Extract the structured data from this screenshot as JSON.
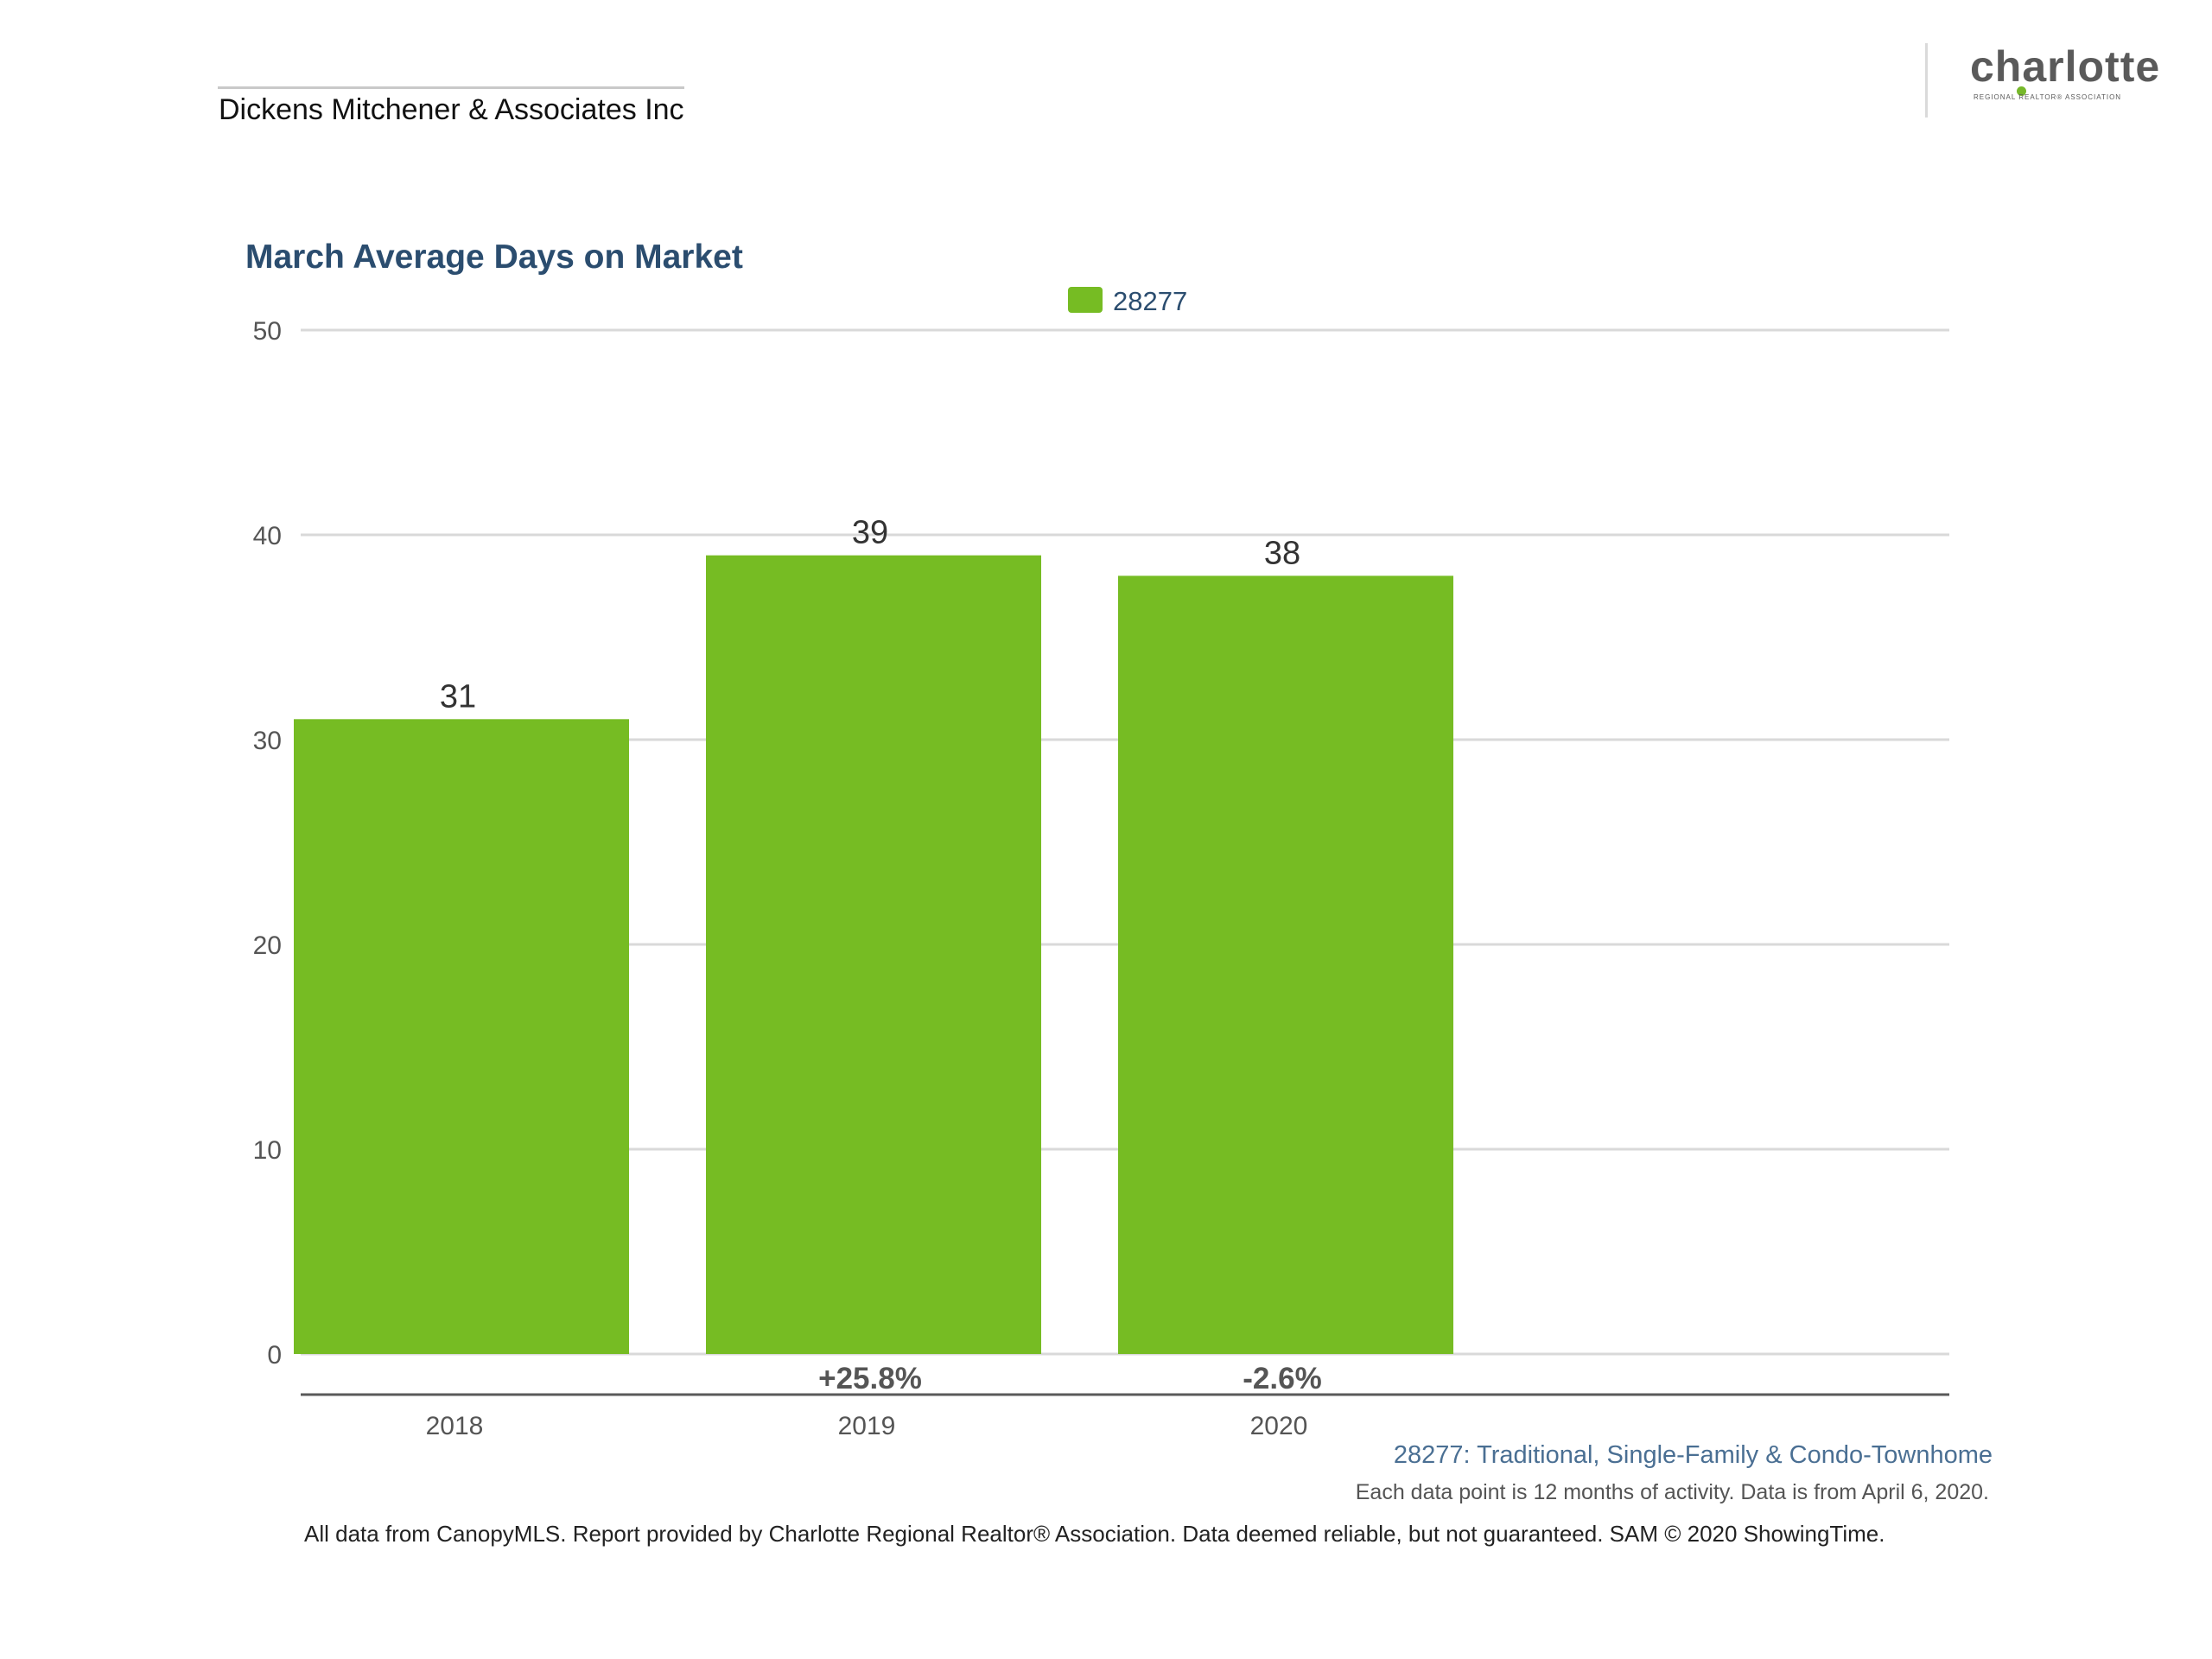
{
  "header": {
    "company": "Dickens Mitchener & Associates Inc"
  },
  "logo": {
    "word": "charlotte",
    "tagline": "REGIONAL REALTOR® ASSOCIATION",
    "accent_color": "#76b82a",
    "text_color": "#5a5a5a"
  },
  "chart_data": {
    "type": "bar",
    "title": "March Average Days on Market",
    "xlabel": "",
    "ylabel": "",
    "categories": [
      "2018",
      "2019",
      "2020"
    ],
    "series": [
      {
        "name": "28277",
        "values": [
          31,
          39,
          38
        ],
        "color": "#76bc23"
      }
    ],
    "data_labels": [
      "31",
      "39",
      "38"
    ],
    "change_labels": [
      "",
      "+25.8%",
      "-2.6%"
    ],
    "yticks": [
      "0",
      "10",
      "20",
      "30",
      "40",
      "50"
    ],
    "ylim": [
      0,
      50
    ],
    "grid": true,
    "legend_position": "top-center"
  },
  "footer": {
    "series_description": "28277: Traditional, Single-Family & Condo-Townhome",
    "note": "Each data point is 12 months of activity. Data is from April 6, 2020.",
    "source": "All data from CanopyMLS. Report provided by Charlotte Regional Realtor® Association. Data deemed reliable, but not guaranteed. SAM © 2020 ShowingTime."
  }
}
